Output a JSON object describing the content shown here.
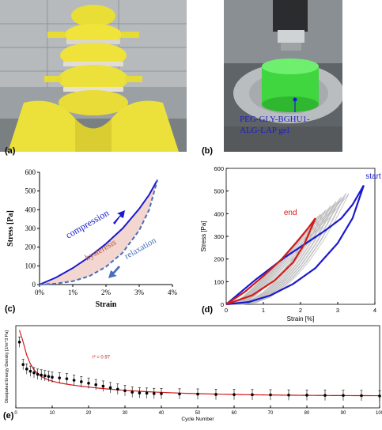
{
  "panel_labels": {
    "a": "(a)",
    "b": "(b)",
    "c": "(c)",
    "d": "(d)",
    "e": "(e)"
  },
  "panel_b": {
    "gel_label_line1": "PEG-GLY-BGHU1-",
    "gel_label_line2": "ALG-LAP gel"
  },
  "colors": {
    "blue": "#1a1ad0",
    "dashed": "#4a6fb8",
    "fill": "#f2d6cf",
    "red": "#d21a1a",
    "grey": "#bdbdbd",
    "yellow": "#f0e33a",
    "green": "#4de04d"
  },
  "chart_data": [
    {
      "type": "line",
      "xlabel": "Strain",
      "ylabel": "Stress [Pa]",
      "x_ticks": [
        "0%",
        "1%",
        "2%",
        "3%",
        "4%"
      ],
      "y_ticks": [
        "0",
        "100",
        "200",
        "300",
        "400",
        "500",
        "600"
      ],
      "xlim": [
        0,
        4
      ],
      "ylim": [
        0,
        600
      ],
      "annotations": [
        "compression",
        "hysteresis",
        "relaxation"
      ],
      "series": [
        {
          "x": [
            0,
            0.5,
            1,
            1.5,
            2,
            2.5,
            3,
            3.3,
            3.55
          ],
          "y": [
            0,
            38,
            88,
            148,
            218,
            300,
            405,
            480,
            560
          ]
        },
        {
          "x": [
            0,
            0.5,
            1,
            1.5,
            2,
            2.5,
            3,
            3.3,
            3.55
          ],
          "y": [
            0,
            5,
            18,
            45,
            95,
            170,
            290,
            400,
            560
          ]
        }
      ]
    },
    {
      "type": "line",
      "xlabel": "Strain [%]",
      "ylabel": "Stress [Pa]",
      "x_ticks": [
        "0",
        "1",
        "2",
        "3",
        "4"
      ],
      "y_ticks": [
        "0",
        "100",
        "200",
        "300",
        "400",
        "500",
        "600"
      ],
      "xlim": [
        0,
        4
      ],
      "ylim": [
        0,
        600
      ],
      "annotations": [
        "start",
        "end"
      ],
      "series": [
        {
          "name": "start",
          "x": [
            0,
            0.6,
            1.2,
            1.8,
            2.4,
            3.0,
            3.4,
            3.7
          ],
          "y": [
            0,
            10,
            40,
            90,
            160,
            270,
            380,
            525
          ]
        },
        {
          "name": "start",
          "x": [
            0,
            0.8,
            1.6,
            2.2,
            2.7,
            3.1,
            3.4,
            3.7
          ],
          "y": [
            0,
            110,
            210,
            275,
            330,
            380,
            440,
            525
          ]
        },
        {
          "name": "end",
          "x": [
            0,
            0.5,
            1.0,
            1.5,
            1.9,
            2.2,
            2.4
          ],
          "y": [
            0,
            55,
            125,
            200,
            275,
            335,
            380
          ]
        },
        {
          "name": "end",
          "x": [
            0,
            0.7,
            1.3,
            1.8,
            2.1,
            2.4
          ],
          "y": [
            0,
            40,
            105,
            185,
            265,
            380
          ]
        }
      ]
    },
    {
      "type": "scatter",
      "xlabel": "Cycle Number",
      "ylabel": "Dissipated Energy Density [J/m^3 Pa]",
      "x_ticks": [
        "0",
        "10",
        "20",
        "30",
        "40",
        "50",
        "60",
        "70",
        "80",
        "90",
        "100"
      ],
      "xlim": [
        0,
        100
      ],
      "ylim": [
        0,
        5.5
      ],
      "annotation": "r² = 0.97",
      "series": [
        {
          "x": [
            1,
            2,
            3,
            4,
            5,
            6,
            7,
            8,
            9,
            10,
            12,
            14,
            16,
            18,
            20,
            22,
            24,
            26,
            28,
            30,
            32,
            34,
            36,
            38,
            40,
            45,
            50,
            55,
            60,
            65,
            70,
            75,
            80,
            85,
            90,
            95,
            100
          ],
          "y": [
            4.4,
            2.9,
            2.6,
            2.45,
            2.35,
            2.25,
            2.2,
            2.15,
            2.1,
            2.05,
            2.0,
            1.95,
            1.85,
            1.75,
            1.65,
            1.55,
            1.45,
            1.35,
            1.25,
            1.15,
            1.05,
            1.0,
            0.98,
            0.96,
            0.95,
            0.93,
            0.92,
            0.9,
            0.89,
            0.88,
            0.87,
            0.86,
            0.85,
            0.84,
            0.83,
            0.82,
            0.8
          ]
        }
      ]
    }
  ]
}
